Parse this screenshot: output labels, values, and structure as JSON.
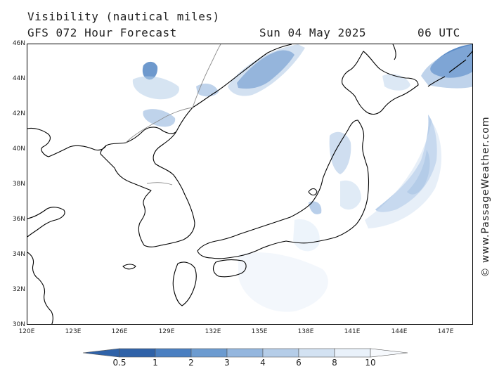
{
  "header": {
    "line1": "Visibility (nautical miles)",
    "model": "GFS 072 Hour Forecast",
    "date": "Sun 04 May 2025",
    "time": "06 UTC"
  },
  "credit": "© www.PassageWeather.com",
  "map": {
    "lon_range": [
      120,
      150
    ],
    "lat_range": [
      30,
      46
    ],
    "lat_ticks": [
      "46N",
      "44N",
      "42N",
      "40N",
      "38N",
      "36N",
      "34N",
      "32N",
      "30N"
    ],
    "lon_ticks": [
      "120E",
      "123E",
      "126E",
      "129E",
      "132E",
      "135E",
      "138E",
      "141E",
      "144E",
      "147E"
    ]
  },
  "legend": {
    "labels": [
      "0.5",
      "1",
      "2",
      "3",
      "4",
      "6",
      "8",
      "10"
    ],
    "colors": [
      "#2f62a8",
      "#4a7fc1",
      "#6c9bd0",
      "#94b6de",
      "#b5cde8",
      "#d3e2f2",
      "#e9f1fa",
      "#f6f9fd"
    ]
  }
}
